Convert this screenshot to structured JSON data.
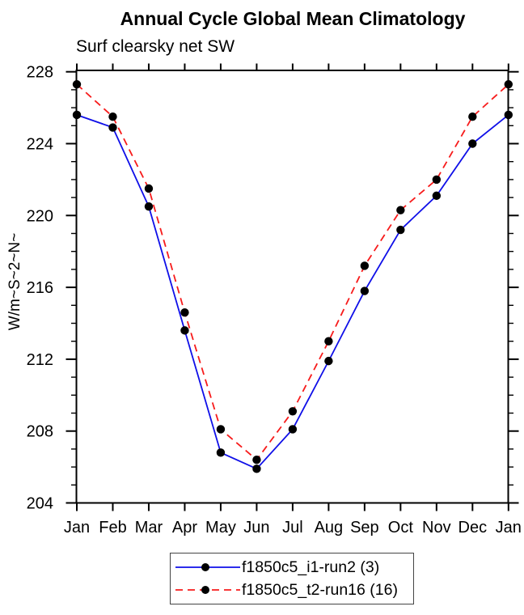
{
  "header": {
    "title": "Annual Cycle Global Mean Climatology",
    "subtitle": "Surf clearsky net SW"
  },
  "chart_data": {
    "type": "line",
    "title": "Annual Cycle Global Mean Climatology",
    "subtitle": "Surf clearsky net SW",
    "xlabel": "",
    "ylabel": "W/m~S~2~N~",
    "categories": [
      "Jan",
      "Feb",
      "Mar",
      "Apr",
      "May",
      "Jun",
      "Jul",
      "Aug",
      "Sep",
      "Oct",
      "Nov",
      "Dec",
      "Jan"
    ],
    "series": [
      {
        "name": "f1850c5_i1-run2 (3)",
        "color": "#0f0fe8",
        "line_style": "solid",
        "line_width": 1.8,
        "marker": "filled-circle",
        "marker_color": "#000000",
        "values": [
          225.6,
          224.9,
          220.5,
          213.6,
          206.8,
          205.9,
          208.1,
          211.9,
          215.8,
          219.2,
          221.1,
          224.0,
          225.6
        ]
      },
      {
        "name": "f1850c5_t2-run16 (16)",
        "color": "#f71b1b",
        "line_style": "dashed",
        "line_width": 1.8,
        "marker": "filled-circle",
        "marker_color": "#000000",
        "values": [
          227.3,
          225.5,
          221.5,
          214.6,
          208.1,
          206.4,
          209.1,
          213.0,
          217.2,
          220.3,
          222.0,
          225.5,
          227.3
        ]
      }
    ],
    "ylim": [
      204,
      228
    ],
    "ytick_major": [
      204,
      208,
      212,
      216,
      220,
      224,
      228
    ],
    "ytick_minor_step": 1,
    "grid": false,
    "legend_position": "bottom-center",
    "axis_color": "#000000",
    "tick_direction": "out"
  }
}
